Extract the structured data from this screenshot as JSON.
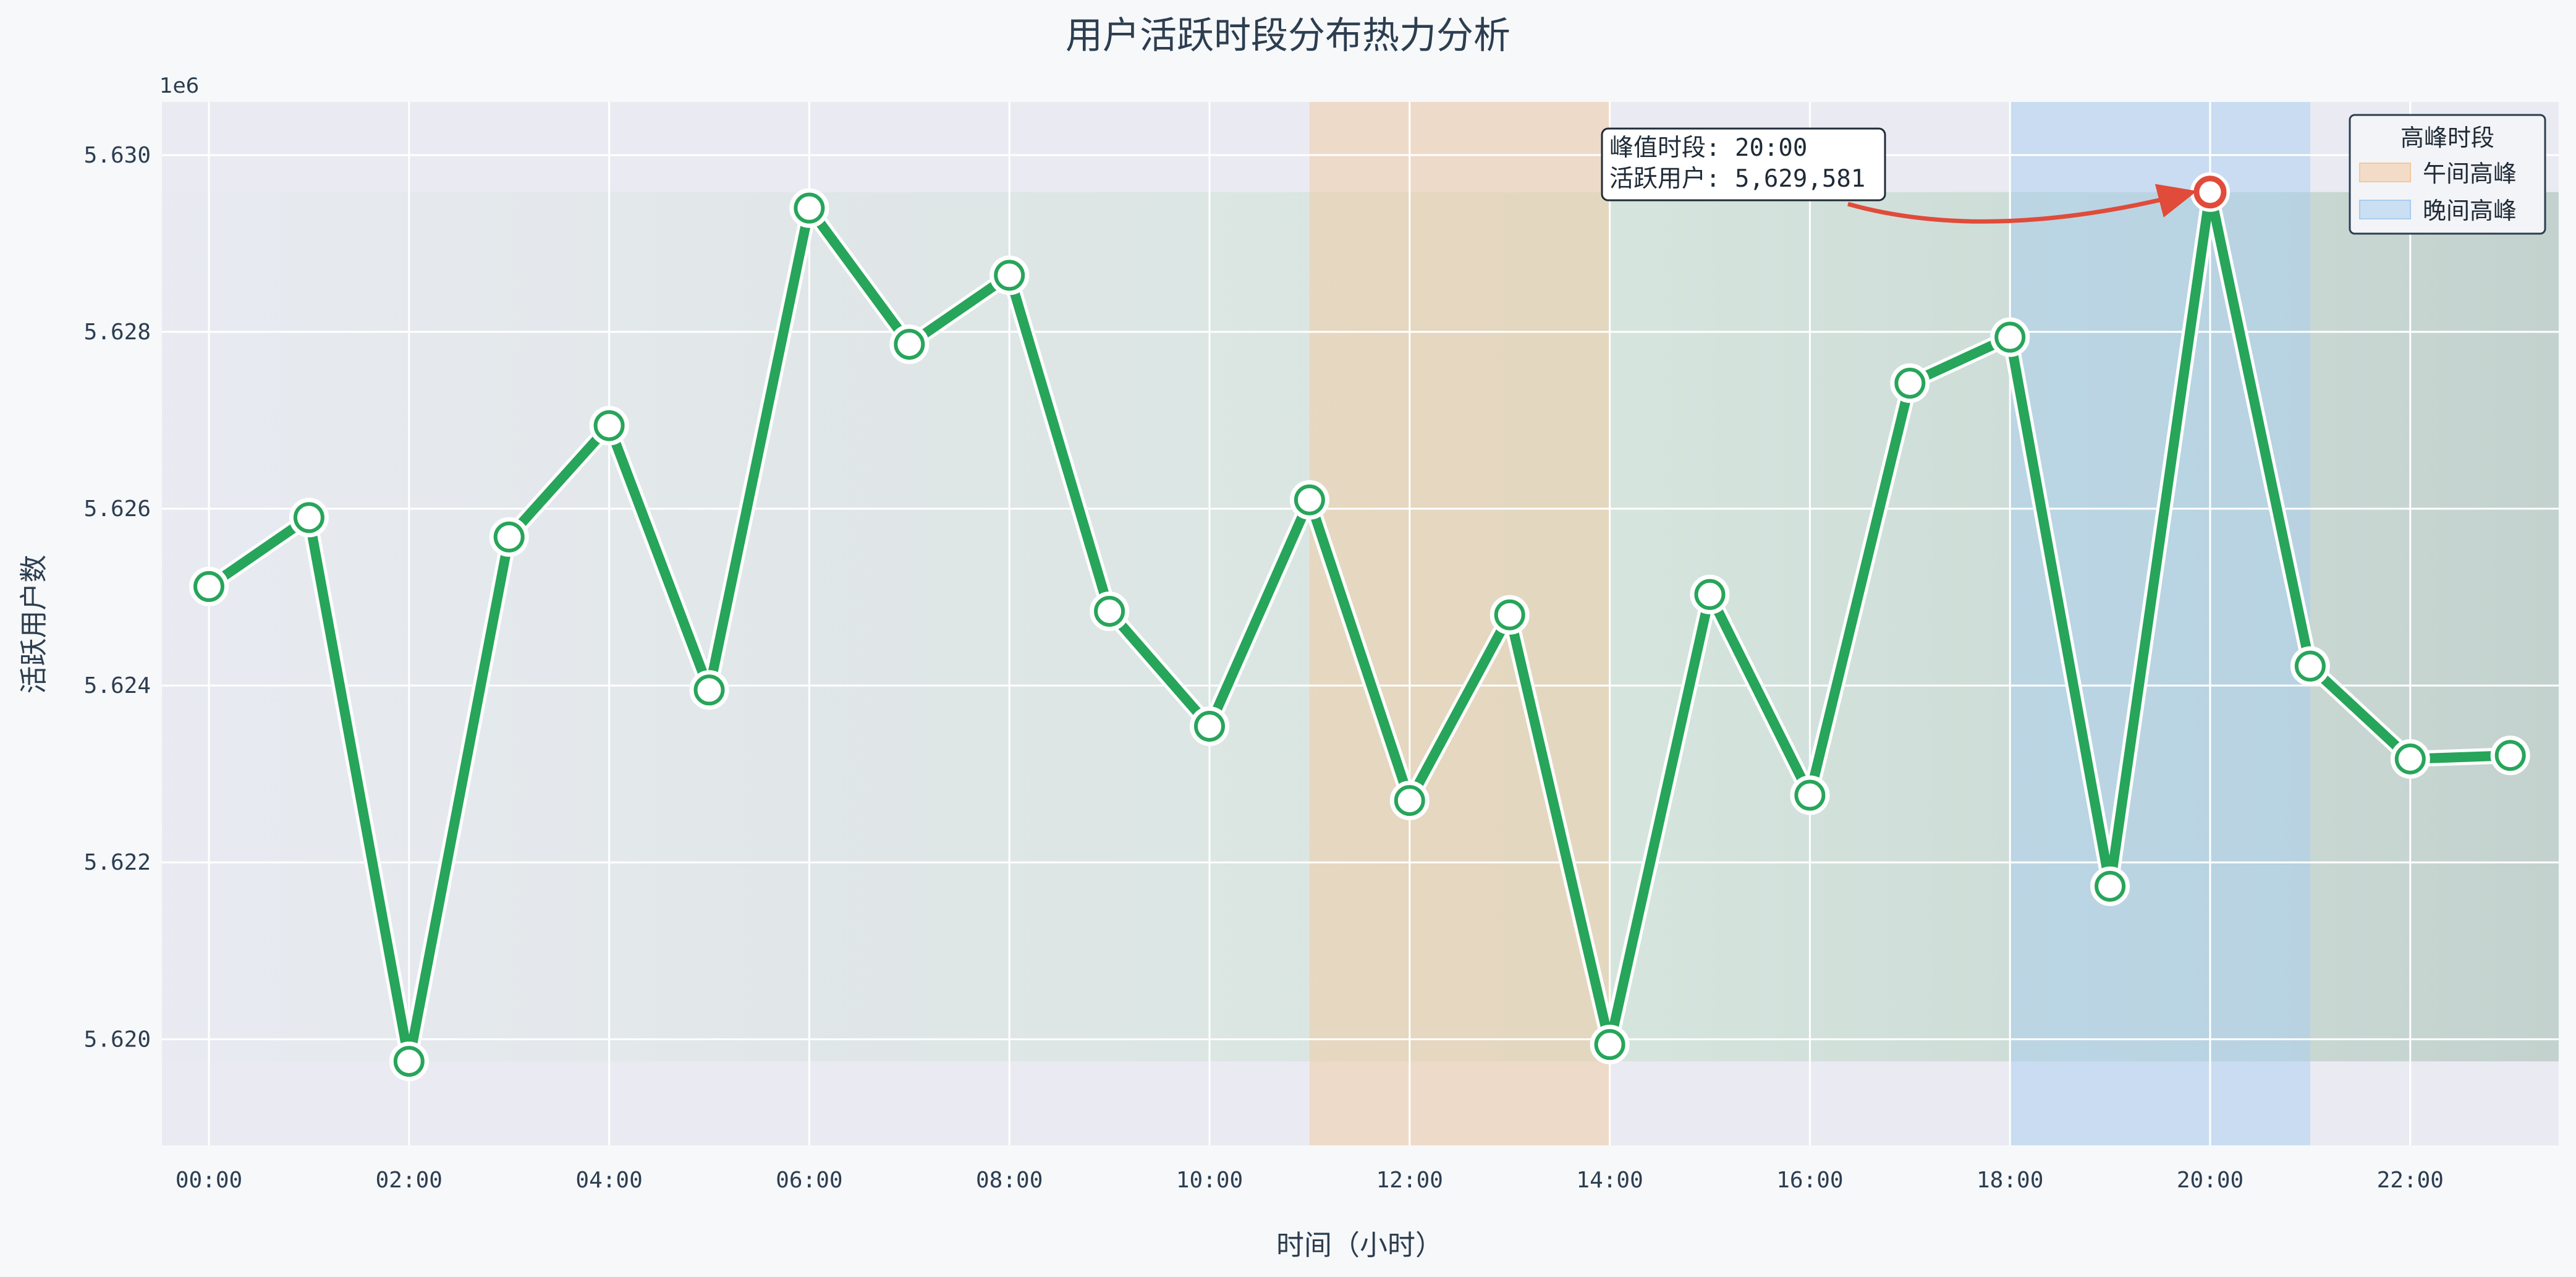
{
  "chart_data": {
    "type": "line",
    "title": "用户活跃时段分布热力分析",
    "xlabel": "时间（小时）",
    "ylabel": "活跃用户数",
    "y_offset_label": "1e6",
    "x": [
      "00:00",
      "01:00",
      "02:00",
      "03:00",
      "04:00",
      "05:00",
      "06:00",
      "07:00",
      "08:00",
      "09:00",
      "10:00",
      "11:00",
      "12:00",
      "13:00",
      "14:00",
      "15:00",
      "16:00",
      "17:00",
      "18:00",
      "19:00",
      "20:00",
      "21:00",
      "22:00",
      "23:00"
    ],
    "x_tick_labels": [
      "00:00",
      "02:00",
      "04:00",
      "06:00",
      "08:00",
      "10:00",
      "12:00",
      "14:00",
      "16:00",
      "18:00",
      "20:00",
      "22:00"
    ],
    "y_tick_labels": [
      "5.620",
      "5.622",
      "5.624",
      "5.626",
      "5.628",
      "5.630"
    ],
    "ylim": [
      5618800,
      5630600
    ],
    "series": [
      {
        "values": [
          5625120,
          5625900,
          5619750,
          5625680,
          5626940,
          5623950,
          5629400,
          5627860,
          5628640,
          5624840,
          5623540,
          5626100,
          5622700,
          5624800,
          5619940,
          5625030,
          5622760,
          5627420,
          5627940,
          5621730,
          5629581,
          5624220,
          5623170,
          5623210
        ],
        "color": "#27a55a"
      }
    ],
    "peak_bands": [
      {
        "name": "午间高峰",
        "from_hour": 11,
        "to_hour": 14,
        "color": "#f2c9a0"
      },
      {
        "name": "晚间高峰",
        "from_hour": 18,
        "to_hour": 21,
        "color": "#a8cdef"
      }
    ],
    "annotation": {
      "line1": "峰值时段: 20:00",
      "line2": "活跃用户: 5,629,581",
      "hour": 20,
      "value": 5629581
    },
    "legend": {
      "title": "高峰时段",
      "position": "top-right"
    },
    "grid": true
  }
}
